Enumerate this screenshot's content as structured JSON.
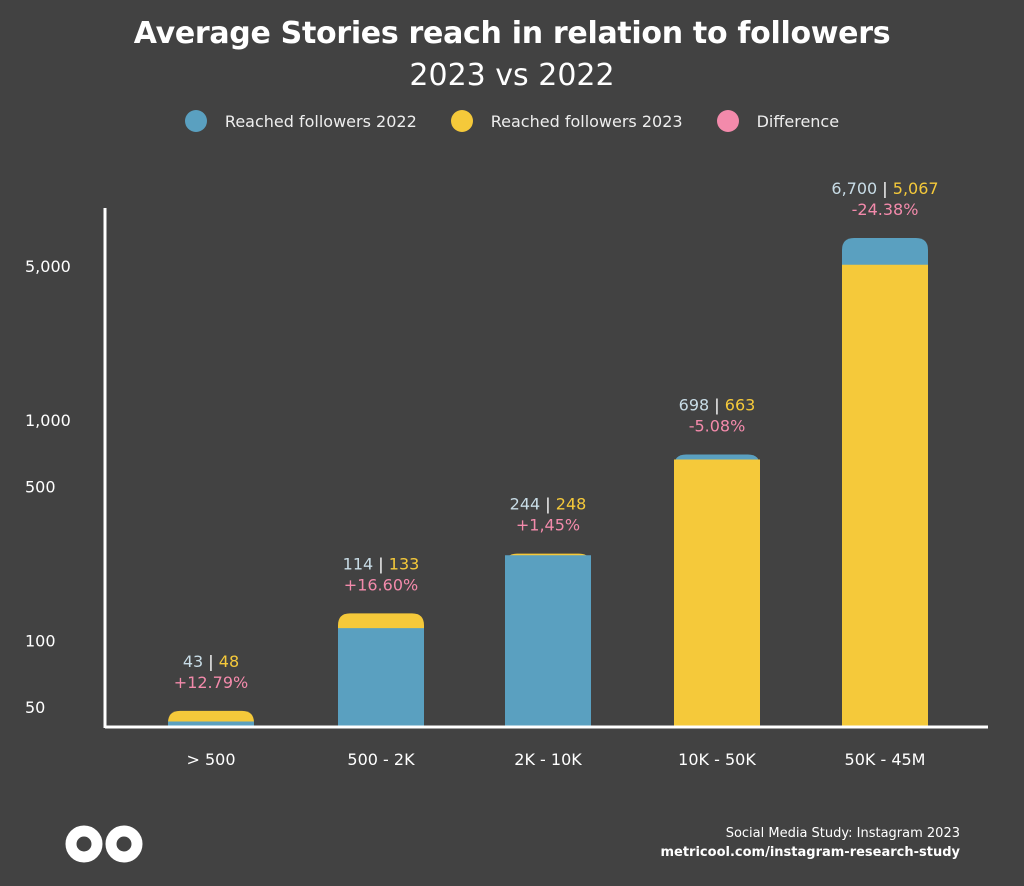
{
  "chart_data": {
    "type": "bar",
    "title": "Average Stories reach in relation to followers",
    "subtitle": "2023 vs 2022",
    "y_scale": "log",
    "ylim": [
      40,
      8000
    ],
    "y_ticks": [
      50,
      100,
      500,
      1000,
      5000
    ],
    "y_tick_labels": [
      "50",
      "100",
      "500",
      "1,000",
      "5,000"
    ],
    "categories": [
      "> 500",
      "500 - 2K",
      "2K - 10K",
      "10K - 50K",
      "50K - 45M"
    ],
    "series": [
      {
        "name": "Reached followers 2022",
        "color": "#5aa0c0",
        "values": [
          43,
          114,
          244,
          698,
          6700
        ]
      },
      {
        "name": "Reached followers 2023",
        "color": "#f5c93a",
        "values": [
          48,
          133,
          248,
          663,
          5067
        ]
      }
    ],
    "value_labels_2022": [
      "43",
      "114",
      "244",
      "698",
      "6,700"
    ],
    "value_labels_2023": [
      "48",
      "133",
      "248",
      "663",
      "5,067"
    ],
    "separator": "|",
    "difference_labels": [
      "+12.79%",
      "+16.60%",
      "+1,45%",
      "-5.08%",
      "-24.38%"
    ],
    "legend": [
      {
        "label": "Reached followers 2022",
        "color": "#5aa0c0"
      },
      {
        "label": "Reached followers 2023",
        "color": "#f5c93a"
      },
      {
        "label": "Difference",
        "color": "#f38aab"
      }
    ],
    "label_colors": {
      "v2022": "#c8dce6",
      "v2023": "#f5c93a",
      "diff": "#f38aab"
    },
    "axis_color": "#ffffff",
    "grid": false,
    "legend_position": "top-center"
  },
  "footer": {
    "line1": "Social Media Study: Instagram 2023",
    "line2": "metricool.com/instagram-research-study"
  },
  "logo_icon": "infinity-logo-icon"
}
